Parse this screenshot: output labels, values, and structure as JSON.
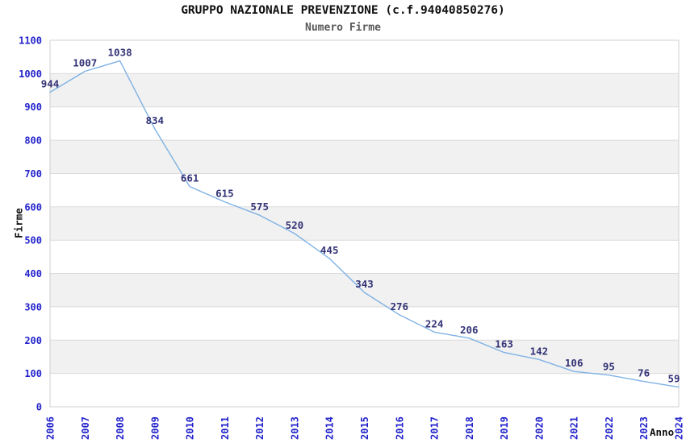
{
  "title": "GRUPPO NAZIONALE PREVENZIONE (c.f.94040850276)",
  "subtitle": "Numero Firme",
  "chart_data": {
    "type": "line",
    "x": [
      2006,
      2007,
      2008,
      2009,
      2010,
      2011,
      2012,
      2013,
      2014,
      2015,
      2016,
      2017,
      2018,
      2019,
      2020,
      2021,
      2022,
      2023,
      2024
    ],
    "values": [
      944,
      1007,
      1038,
      834,
      661,
      615,
      575,
      520,
      445,
      343,
      276,
      224,
      206,
      163,
      142,
      106,
      95,
      76,
      59
    ],
    "title": "GRUPPO NAZIONALE PREVENZIONE (c.f.94040850276)",
    "subtitle": "Numero Firme",
    "xlabel": "Anno",
    "ylabel": "Firme",
    "ylim": [
      0,
      1100
    ],
    "ytick_step": 100,
    "yticks": [
      0,
      100,
      200,
      300,
      400,
      500,
      600,
      700,
      800,
      900,
      1000,
      1100
    ],
    "grid": true,
    "legend": "none",
    "alternating_bands": true,
    "data_labels_visible": true,
    "colors": {
      "line": "#7FB2E5",
      "tick_label": "#2323CC",
      "data_label": "#333377",
      "band": "#F1F1F1",
      "gridline": "#DBDBDB",
      "border": "#CFCFCF",
      "background": "#FFFFFF"
    }
  }
}
